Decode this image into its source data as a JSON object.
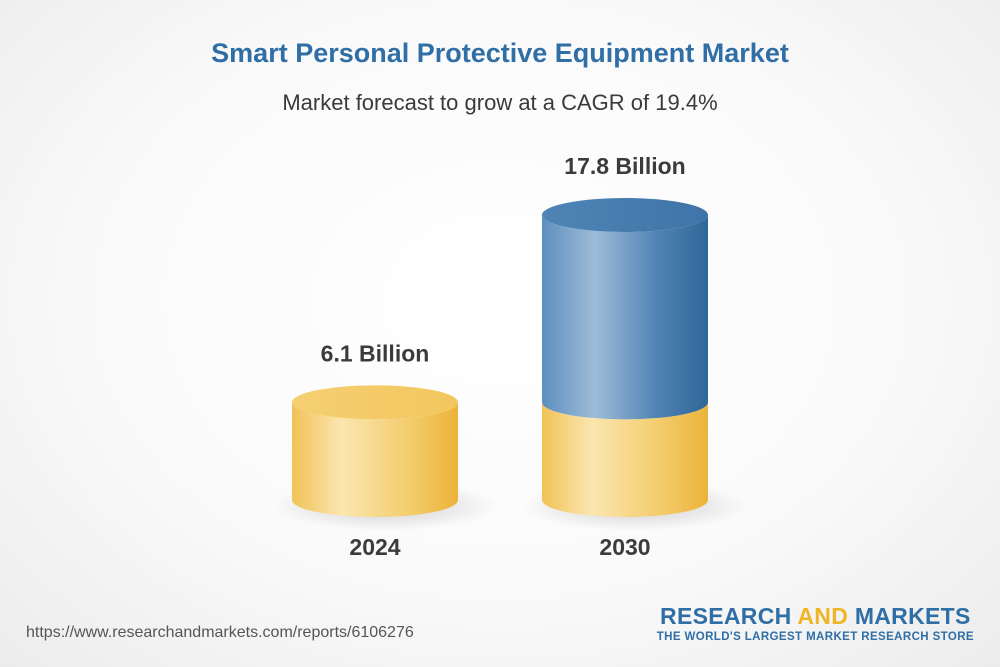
{
  "chart_data": {
    "type": "bar",
    "style": "3d-cylinder",
    "title": "Smart Personal Protective Equipment Market",
    "subtitle": "Market forecast to grow at a CAGR of 19.4%",
    "categories": [
      "2024",
      "2030"
    ],
    "values": [
      6.1,
      17.8
    ],
    "value_labels": [
      "6.1 Billion",
      "17.8 Billion"
    ],
    "unit": "Billion",
    "growth_highlight": {
      "category": "2030",
      "base_value": 6.1
    },
    "colors": {
      "base": "#f2c14e",
      "base_light": "#fbe6b0",
      "growth": "#3d78ad",
      "growth_light": "#9dbcd8",
      "label": "#3b3b3b"
    }
  },
  "footer": {
    "source_url": "https://www.researchandmarkets.com/reports/6106276",
    "brand_word1": "RESEARCH",
    "brand_word2": "AND",
    "brand_word3": "MARKETS",
    "brand_tagline": "THE WORLD'S LARGEST MARKET RESEARCH STORE"
  }
}
